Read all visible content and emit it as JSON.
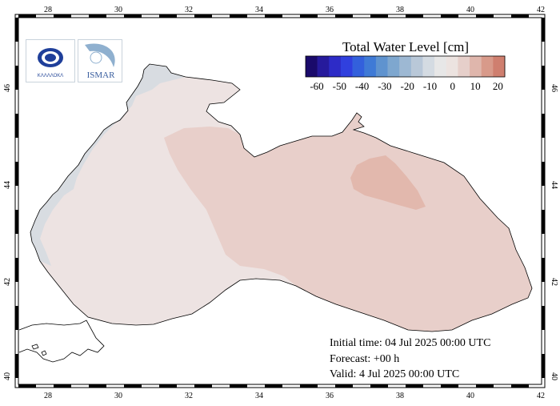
{
  "legend": {
    "title": "Total Water Level [cm]",
    "ticks": [
      "-60",
      "-50",
      "-40",
      "-30",
      "-20",
      "-10",
      "0",
      "10",
      "20"
    ],
    "colors": [
      "#1a0a6b",
      "#261a9c",
      "#2d2bc7",
      "#3040de",
      "#3360dc",
      "#3f7ad6",
      "#5f93cf",
      "#7ea7cf",
      "#9db8d3",
      "#b9c8d8",
      "#d4dbe2",
      "#e7e7e7",
      "#ece3e0",
      "#e6cfca",
      "#dfb6ac",
      "#d89a8a",
      "#cf7f6f"
    ]
  },
  "axes": {
    "x_ticks": [
      "28",
      "30",
      "32",
      "34",
      "36",
      "38",
      "40",
      "42"
    ],
    "y_ticks": [
      "46",
      "44",
      "42",
      "40"
    ]
  },
  "info": {
    "initial_time": "Initial time: 04 Jul 2025 00:00 UTC",
    "forecast": "Forecast: +00 h",
    "valid": "Valid:  4 Jul 2025 00:00 UTC"
  },
  "logos": {
    "left_text": "ΚΛΛΛΛΟΚΛ",
    "right_text": "ISMAR"
  },
  "colors": {
    "sea_base": "#ede3e2",
    "sea_east": "#e8cfca",
    "sea_hotspot": "#e2b8ad",
    "coast_shallow": "#d6dadf",
    "land": "#ffffff"
  }
}
